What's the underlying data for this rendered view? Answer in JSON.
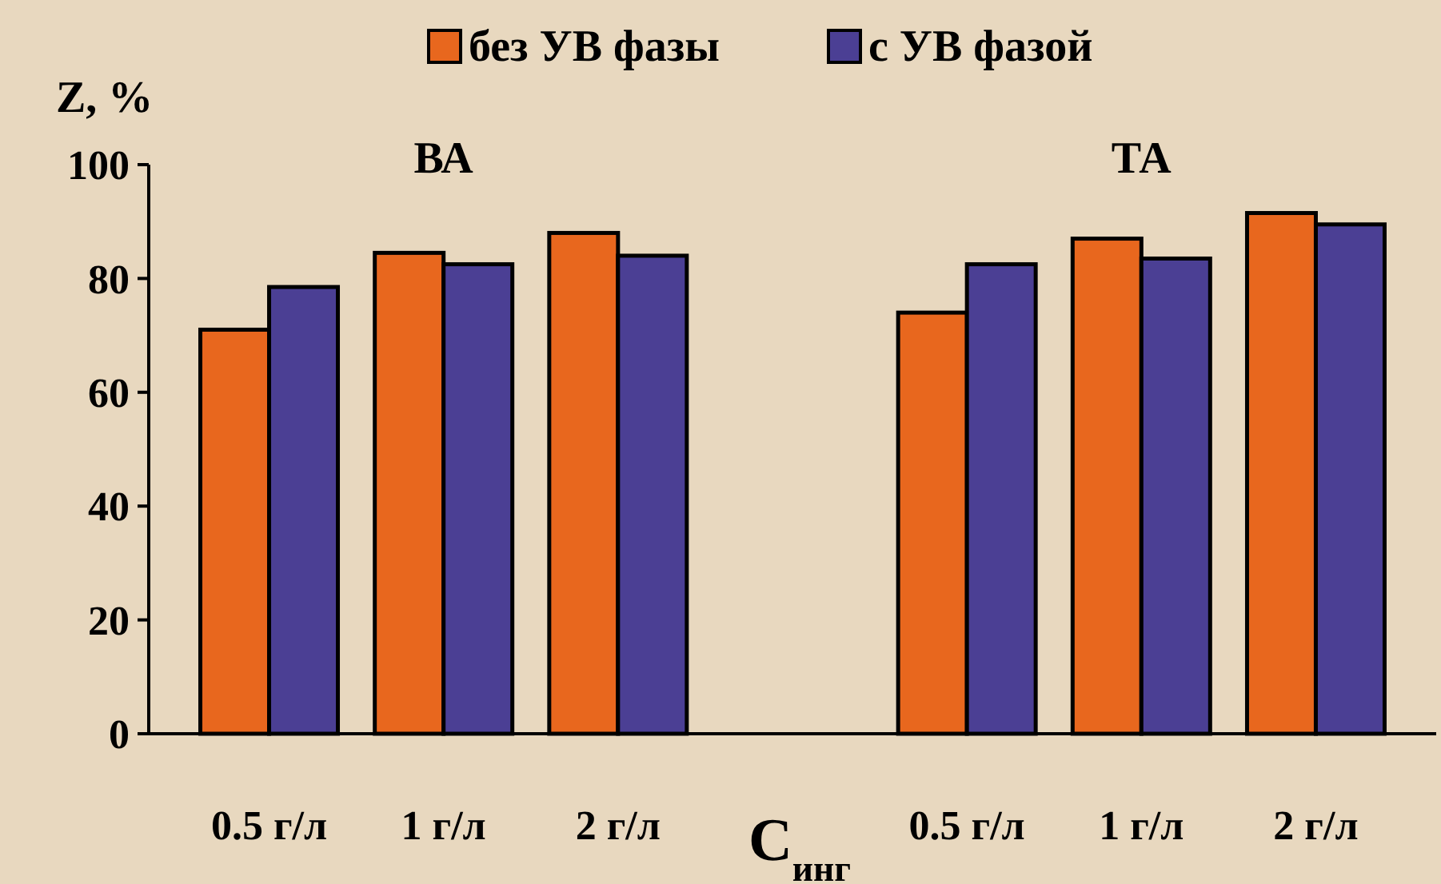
{
  "chart_data": {
    "type": "bar",
    "xlabel": "С$_{инг}$",
    "ylabel": "Z, %",
    "categories": [
      "0.5 г/л",
      "1 г/л",
      "2 г/л",
      null,
      "0.5 г/л",
      "1 г/л",
      "2 г/л"
    ],
    "series": [
      {
        "name": "без УВ фазы",
        "color": "#e8671e",
        "values": [
          71,
          84.5,
          88,
          null,
          74,
          87,
          91.5
        ]
      },
      {
        "name": "с УВ фазой",
        "color": "#4b3f94",
        "values": [
          78.5,
          82.5,
          84,
          null,
          82.5,
          83.5,
          89.5
        ]
      }
    ],
    "ylim": [
      0,
      100
    ],
    "yticks": [
      0,
      20,
      40,
      60,
      80,
      100
    ],
    "grid": false,
    "legend": "top",
    "annotations": [
      "ВА",
      "ТА"
    ]
  }
}
